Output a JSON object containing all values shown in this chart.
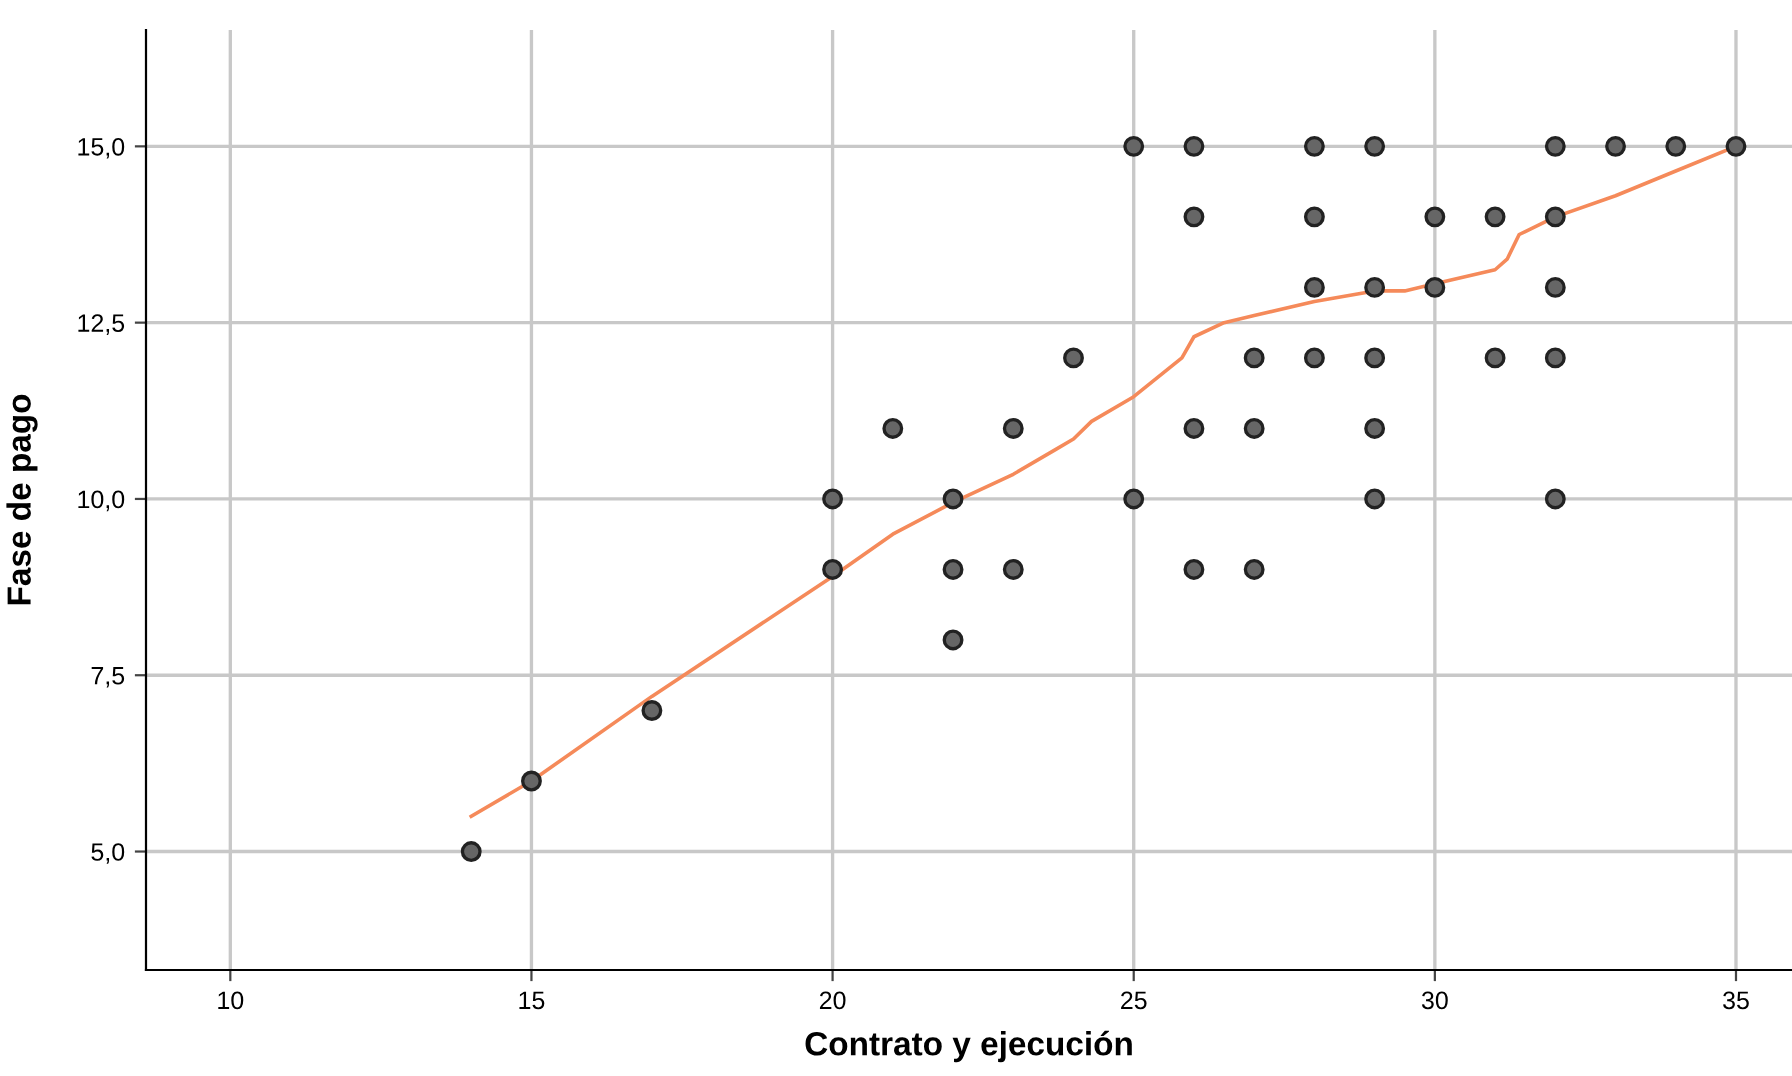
{
  "chart_data": {
    "type": "scatter",
    "xlabel": "Contrato y ejecución",
    "ylabel": "Fase de pago",
    "xlim": [
      8.6,
      35.93
    ],
    "ylim": [
      3.32,
      16.65
    ],
    "xticks": [
      10,
      15,
      20,
      25,
      30,
      35
    ],
    "yticks": [
      {
        "value": 5,
        "label": "5,0"
      },
      {
        "value": 7.5,
        "label": "7,5"
      },
      {
        "value": 10,
        "label": "10,0"
      },
      {
        "value": 12.5,
        "label": "12,5"
      },
      {
        "value": 15,
        "label": "15,0"
      }
    ],
    "grid": true,
    "marker": "circle",
    "series": [
      {
        "color": "#666666",
        "x": [
          14,
          15,
          17,
          20,
          20,
          21,
          22,
          22,
          22,
          23,
          23,
          24,
          25,
          25,
          26,
          26,
          26,
          26,
          27,
          27,
          27,
          28,
          28,
          28,
          28,
          29,
          29,
          29,
          29,
          29,
          30,
          30,
          31,
          31,
          32,
          32,
          32,
          32,
          32,
          33,
          34,
          35
        ],
        "values": [
          5,
          6,
          7,
          9,
          10,
          11,
          8,
          9,
          10,
          9,
          11,
          12,
          10,
          15,
          9,
          11,
          14,
          15,
          9,
          11,
          12,
          12,
          13,
          14,
          15,
          10,
          11,
          12,
          13,
          15,
          13,
          14,
          12,
          14,
          10,
          12,
          13,
          14,
          15,
          15,
          15,
          15
        ]
      },
      {
        "type": "line",
        "color": "#f58a5a",
        "marker": "none",
        "line_style": "solid",
        "x": [
          14,
          15,
          17,
          20,
          21,
          22,
          23,
          23.7,
          24,
          24.3,
          25,
          25.8,
          26,
          26.5,
          27,
          28,
          29,
          29.5,
          30,
          31,
          31.2,
          31.4,
          32,
          33,
          34,
          35
        ],
        "values": [
          5.5,
          6,
          7.2,
          8.9,
          9.5,
          9.95,
          10.35,
          10.7,
          10.85,
          11.1,
          11.45,
          12.0,
          12.3,
          12.5,
          12.6,
          12.8,
          12.95,
          12.95,
          13.05,
          13.25,
          13.4,
          13.75,
          14.0,
          14.3,
          14.65,
          15.0
        ]
      }
    ]
  }
}
